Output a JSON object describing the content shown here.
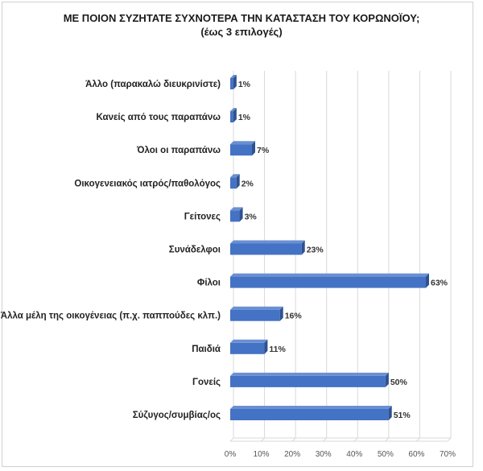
{
  "title": "ΜΕ ΠΟΙΟΝ ΣΥΖΗΤΑΤΕ ΣΥΧΝΟΤΕΡΑ ΤΗΝ ΚΑΤΑΣΤΑΣΗ ΤΟΥ ΚΟΡΩΝΟΪΟΥ;",
  "subtitle": "(έως 3 επιλογές)",
  "colors": {
    "bar": "#4472C4",
    "bar_side": "#2F528F",
    "bar_top": "#6A8FD3",
    "grid": "#d9d9d9"
  },
  "chart_data": {
    "type": "bar",
    "orientation": "horizontal",
    "style": "3d",
    "title": "ΜΕ ΠΟΙΟΝ ΣΥΖΗΤΑΤΕ ΣΥΧΝΟΤΕΡΑ ΤΗΝ ΚΑΤΑΣΤΑΣΗ ΤΟΥ ΚΟΡΩΝΟΪΟΥ;",
    "subtitle": "(έως 3 επιλογές)",
    "categories": [
      "Άλλο (παρακαλώ διευκρινίστε)",
      "Κανείς από τους παραπάνω",
      "Όλοι οι παραπάνω",
      "Οικογενειακός ιατρός/παθολόγος",
      "Γείτονες",
      "Συνάδελφοι",
      "Φίλοι",
      "Άλλα μέλη της οικογένειας (π.χ. παππούδες κλπ.)",
      "Παιδιά",
      "Γονείς",
      "Σύζυγος/συμβίας/ος"
    ],
    "values": [
      1,
      1,
      7,
      2,
      3,
      23,
      63,
      16,
      11,
      50,
      51
    ],
    "data_labels": [
      "1%",
      "1%",
      "7%",
      "2%",
      "3%",
      "23%",
      "63%",
      "16%",
      "11%",
      "50%",
      "51%"
    ],
    "xlim": [
      0,
      70
    ],
    "x_ticks": [
      "0%",
      "10%",
      "20%",
      "30%",
      "40%",
      "50%",
      "60%",
      "70%"
    ],
    "grid": true,
    "legend": "none"
  }
}
